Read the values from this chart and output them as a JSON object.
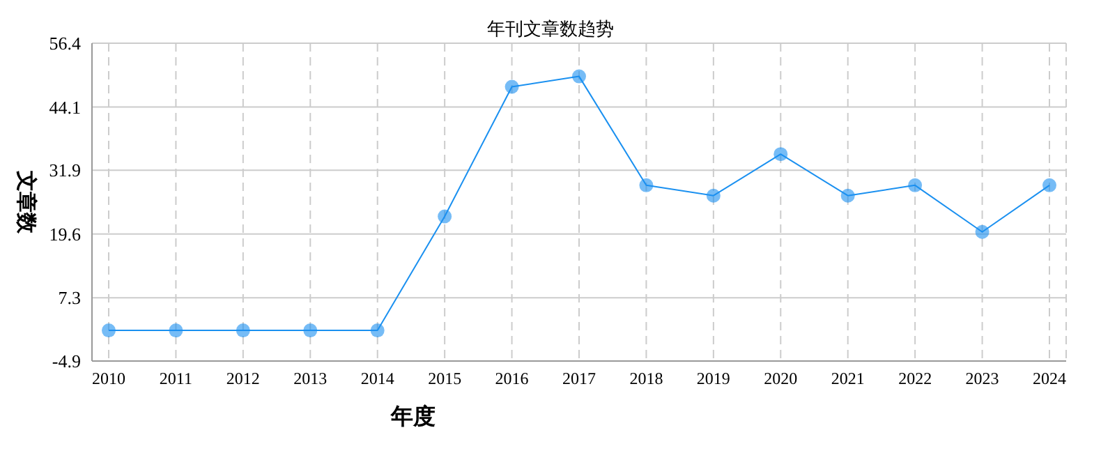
{
  "chart_data": {
    "type": "line",
    "title": "年刊文章数趋势",
    "xlabel": "年度",
    "ylabel": "文章数",
    "categories": [
      "2010",
      "2011",
      "2012",
      "2013",
      "2014",
      "2015",
      "2016",
      "2017",
      "2018",
      "2019",
      "2020",
      "2021",
      "2022",
      "2023",
      "2024"
    ],
    "series": [
      {
        "color": "#1a90f0",
        "values": [
          1,
          1,
          1,
          1,
          1,
          23,
          48,
          50,
          29,
          27,
          35,
          27,
          29,
          20,
          29
        ]
      }
    ],
    "ylim": [
      -4.9,
      56.4
    ],
    "yticks": [
      -4.9,
      7.3,
      19.6,
      31.9,
      44.1,
      56.4
    ],
    "grid": true,
    "marker": "circle",
    "line_style": "solid",
    "legend": false
  }
}
